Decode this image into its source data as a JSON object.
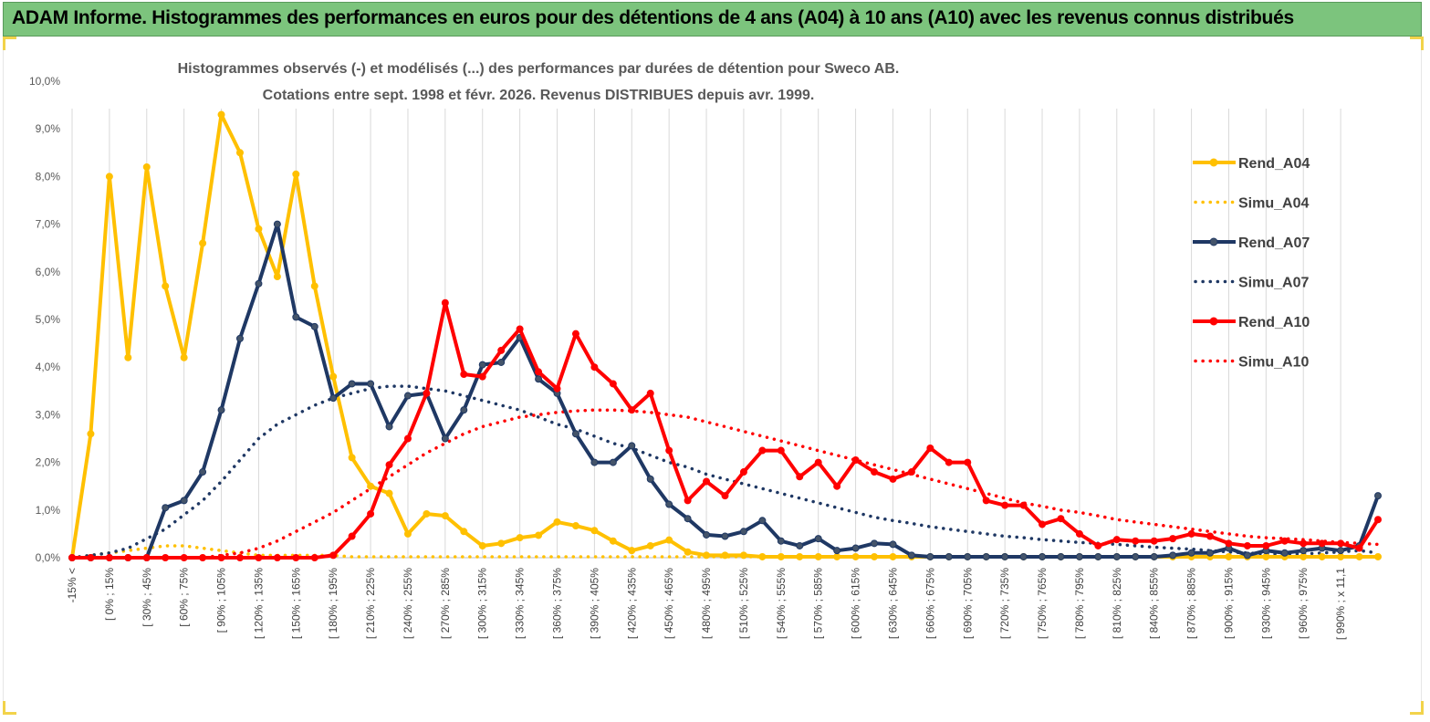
{
  "header": {
    "title": "ADAM Informe. Histogrammes des performances en euros pour des détentions de 4 ans (A04) à 10 ans (A10) avec les revenus connus distribués"
  },
  "chart_data": {
    "type": "line",
    "title_line1": "Histogrammes observés (-) et modélisés (...) des performances par durées de détention pour Sweco AB.",
    "title_line2": "Cotations entre sept. 1998 et févr. 2026. Revenus DISTRIBUES depuis avr. 1999.",
    "ylim": [
      0,
      10
    ],
    "y_ticks": [
      "0,0%",
      "1,0%",
      "2,0%",
      "3,0%",
      "4,0%",
      "5,0%",
      "6,0%",
      "7,0%",
      "8,0%",
      "9,0%",
      "10,0%"
    ],
    "x_tick_labels": [
      "-15% <",
      "[ 0% ; 15%",
      "[ 30% ; 45%",
      "[ 60% ; 75%",
      "[ 90% ; 105%",
      "[ 120% ; 135%",
      "[ 150% ; 165%",
      "[ 180% ; 195%",
      "[ 210% ; 225%",
      "[ 240% ; 255%",
      "[ 270% ; 285%",
      "[ 300% ; 315%",
      "[ 330% ; 345%",
      "[ 360% ; 375%",
      "[ 390% ; 405%",
      "[ 420% ; 435%",
      "[ 450% ; 465%",
      "[ 480% ; 495%",
      "[ 510% ; 525%",
      "[ 540% ; 555%",
      "[ 570% ; 585%",
      "[ 600% ; 615%",
      "[ 630% ; 645%",
      "[ 660% ; 675%",
      "[ 690% ; 705%",
      "[ 720% ; 735%",
      "[ 750% ; 765%",
      "[ 780% ; 795%",
      "[ 810% ; 825%",
      "[ 840% ; 855%",
      "[ 870% ; 885%",
      "[ 900% ; 915%",
      "[ 930% ; 945%",
      "[ 960% ; 975%",
      "[ 990% ; x 11,1"
    ],
    "num_points": 71,
    "series": [
      {
        "name": "Rend_A04",
        "style": "solid-marker",
        "color": "#ffc000",
        "values": [
          0,
          2.6,
          8.0,
          4.2,
          8.2,
          5.7,
          4.2,
          6.6,
          9.3,
          8.5,
          6.9,
          5.9,
          8.05,
          5.7,
          3.8,
          2.1,
          1.5,
          1.35,
          0.5,
          0.92,
          0.88,
          0.55,
          0.25,
          0.3,
          0.42,
          0.47,
          0.75,
          0.67,
          0.57,
          0.35,
          0.15,
          0.25,
          0.37,
          0.12,
          0.05,
          0.05,
          0.05,
          0.02,
          0.02,
          0.02,
          0.02,
          0.02,
          0.02,
          0.02,
          0.02,
          0.02,
          0.02,
          0.02,
          0.02,
          0.02,
          0.02,
          0.02,
          0.02,
          0.02,
          0.02,
          0.02,
          0.02,
          0.02,
          0.02,
          0.02,
          0.02,
          0.02,
          0.02,
          0.02,
          0.02,
          0.02,
          0.02,
          0.02,
          0.02,
          0.02,
          0.02
        ]
      },
      {
        "name": "Simu_A04",
        "style": "dotted",
        "color": "#ffc000",
        "values": [
          0,
          0.05,
          0.1,
          0.15,
          0.2,
          0.25,
          0.25,
          0.2,
          0.15,
          0.1,
          0.05,
          0.05,
          0.05,
          0.05,
          0.05,
          0.02,
          0.02,
          0.02,
          0.02,
          0.02,
          0.02,
          0.02,
          0.02,
          0.02,
          0.02,
          0.02,
          0.02,
          0.02,
          0.02,
          0.02,
          0.02,
          0.02,
          0.02,
          0.02,
          0.02,
          0.02,
          0.02,
          0.02,
          0.02,
          0.02,
          0.02,
          0.02,
          0.02,
          0.02,
          0.02,
          0.02,
          0.02,
          0.02,
          0.02,
          0.02,
          0.02,
          0.02,
          0.02,
          0.02,
          0.02,
          0.02,
          0.02,
          0.02,
          0.02,
          0.02,
          0.02,
          0.02,
          0.02,
          0.02,
          0.02,
          0.02,
          0.02,
          0.02,
          0.02,
          0.02,
          0.02
        ]
      },
      {
        "name": "Rend_A07",
        "style": "solid-marker",
        "color": "#1f3864",
        "values": [
          0,
          0,
          0,
          0,
          0,
          1.05,
          1.2,
          1.8,
          3.1,
          4.6,
          5.75,
          7.0,
          5.05,
          4.85,
          3.35,
          3.65,
          3.65,
          2.75,
          3.4,
          3.45,
          2.5,
          3.1,
          4.05,
          4.1,
          4.62,
          3.75,
          3.45,
          2.6,
          2.0,
          2.0,
          2.35,
          1.65,
          1.12,
          0.82,
          0.48,
          0.45,
          0.55,
          0.78,
          0.35,
          0.25,
          0.4,
          0.15,
          0.2,
          0.3,
          0.28,
          0.05,
          0.02,
          0.02,
          0.02,
          0.02,
          0.02,
          0.02,
          0.02,
          0.02,
          0.02,
          0.02,
          0.02,
          0.02,
          0.02,
          0.05,
          0.1,
          0.1,
          0.2,
          0.05,
          0.15,
          0.1,
          0.15,
          0.2,
          0.15,
          0.25,
          1.3
        ]
      },
      {
        "name": "Simu_A07",
        "style": "dotted",
        "color": "#1f3864",
        "values": [
          0,
          0.05,
          0.1,
          0.2,
          0.4,
          0.6,
          0.9,
          1.2,
          1.6,
          2.05,
          2.5,
          2.8,
          3.0,
          3.2,
          3.35,
          3.45,
          3.55,
          3.6,
          3.6,
          3.55,
          3.5,
          3.4,
          3.3,
          3.2,
          3.1,
          2.95,
          2.8,
          2.7,
          2.55,
          2.4,
          2.3,
          2.15,
          2.0,
          1.9,
          1.75,
          1.65,
          1.55,
          1.45,
          1.35,
          1.25,
          1.15,
          1.05,
          0.95,
          0.85,
          0.78,
          0.72,
          0.65,
          0.6,
          0.55,
          0.5,
          0.45,
          0.42,
          0.38,
          0.35,
          0.32,
          0.3,
          0.28,
          0.25,
          0.22,
          0.2,
          0.18,
          0.15,
          0.12,
          0.1,
          0.08,
          0.08,
          0.08,
          0.1,
          0.12,
          0.15,
          0.1
        ]
      },
      {
        "name": "Rend_A10",
        "style": "solid-marker",
        "color": "#ff0000",
        "values": [
          0,
          0,
          0,
          0,
          0,
          0,
          0,
          0,
          0,
          0,
          0,
          0,
          0,
          0,
          0.05,
          0.45,
          0.92,
          1.95,
          2.5,
          3.45,
          5.35,
          3.85,
          3.8,
          4.35,
          4.8,
          3.9,
          3.55,
          4.7,
          4.0,
          3.65,
          3.1,
          3.45,
          2.25,
          1.2,
          1.6,
          1.3,
          1.8,
          2.25,
          2.25,
          1.7,
          2.0,
          1.5,
          2.05,
          1.8,
          1.65,
          1.8,
          2.3,
          2.0,
          2.0,
          1.2,
          1.1,
          1.1,
          0.7,
          0.82,
          0.5,
          0.25,
          0.38,
          0.35,
          0.35,
          0.4,
          0.5,
          0.45,
          0.3,
          0.25,
          0.25,
          0.35,
          0.3,
          0.3,
          0.3,
          0.2,
          0.8
        ]
      },
      {
        "name": "Simu_A10",
        "style": "dotted",
        "color": "#ff0000",
        "values": [
          0,
          0,
          0,
          0,
          0,
          0,
          0,
          0,
          0.05,
          0.1,
          0.2,
          0.35,
          0.55,
          0.75,
          0.95,
          1.2,
          1.45,
          1.7,
          1.95,
          2.2,
          2.4,
          2.6,
          2.75,
          2.85,
          2.95,
          3.0,
          3.05,
          3.08,
          3.1,
          3.1,
          3.08,
          3.05,
          3.0,
          2.95,
          2.85,
          2.75,
          2.65,
          2.55,
          2.45,
          2.35,
          2.25,
          2.15,
          2.05,
          1.95,
          1.85,
          1.75,
          1.65,
          1.55,
          1.45,
          1.35,
          1.25,
          1.15,
          1.08,
          1.0,
          0.95,
          0.88,
          0.8,
          0.75,
          0.7,
          0.65,
          0.6,
          0.55,
          0.5,
          0.45,
          0.42,
          0.4,
          0.38,
          0.35,
          0.32,
          0.3,
          0.28
        ]
      }
    ],
    "legend": [
      "Rend_A04",
      "Simu_A04",
      "Rend_A07",
      "Simu_A07",
      "Rend_A10",
      "Simu_A10"
    ],
    "legend_position": "right",
    "grid": "vertical"
  }
}
